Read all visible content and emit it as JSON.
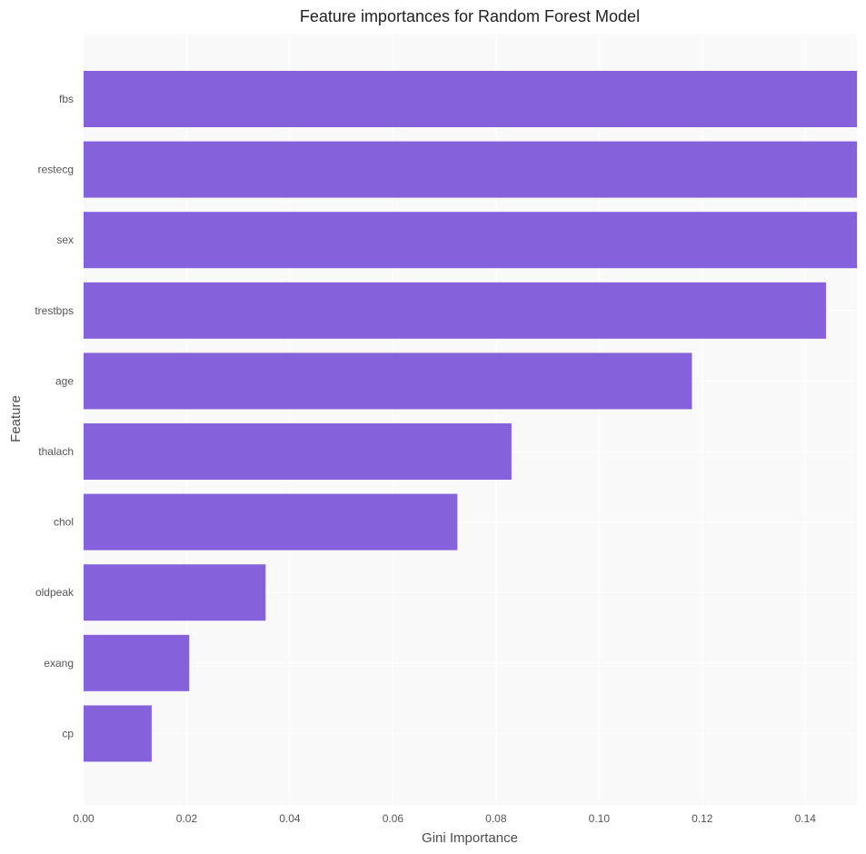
{
  "chart_data": {
    "type": "bar",
    "orientation": "horizontal",
    "title": "Feature importances for Random Forest Model",
    "xlabel": "Gini Importance",
    "ylabel": "Feature",
    "categories": [
      "fbs",
      "restecg",
      "sex",
      "trestbps",
      "age",
      "thalach",
      "chol",
      "oldpeak",
      "exang",
      "cp"
    ],
    "values": [
      0.15,
      0.15,
      0.15,
      0.144,
      0.118,
      0.083,
      0.0725,
      0.0353,
      0.0205,
      0.0132
    ],
    "xlim": [
      0,
      0.15
    ],
    "xticks": [
      "0.00",
      "0.02",
      "0.04",
      "0.06",
      "0.08",
      "0.10",
      "0.12",
      "0.14"
    ],
    "grid": true,
    "bar_color": "#8661dc",
    "plot_background": "#f9f9f9"
  }
}
